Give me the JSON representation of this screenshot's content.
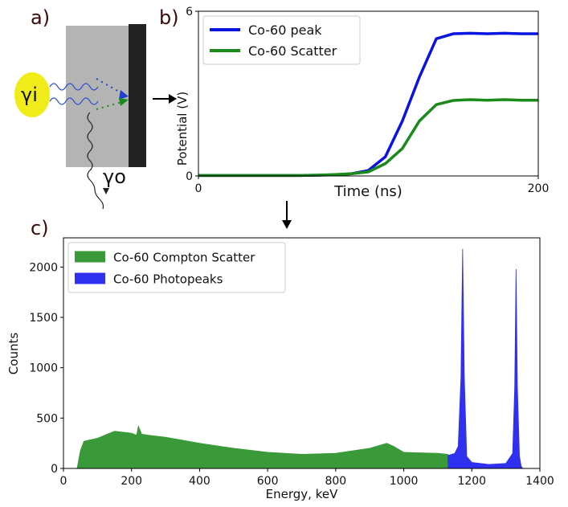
{
  "panel_labels": [
    "a)",
    "b)",
    "c)"
  ],
  "diagram": {
    "incident": "γi",
    "outgoing": "γo"
  },
  "chart_data": [
    {
      "type": "line",
      "xlabel": "Time (ns)",
      "ylabel": "Potential (V)",
      "xlim": [
        0,
        200
      ],
      "xticks": [
        0,
        200
      ],
      "ylim": [
        0,
        6
      ],
      "yticks": [
        0,
        6
      ],
      "legend": "upper-left",
      "x": [
        0,
        10,
        20,
        30,
        40,
        50,
        60,
        70,
        80,
        90,
        100,
        110,
        120,
        130,
        140,
        150,
        160,
        170,
        180,
        190,
        200
      ],
      "series": [
        {
          "name": "Co-60 peak",
          "color": "#0a14e0",
          "values": [
            0.02,
            0.02,
            0.02,
            0.02,
            0.02,
            0.02,
            0.02,
            0.03,
            0.04,
            0.08,
            0.2,
            0.7,
            2.0,
            3.6,
            5.0,
            5.18,
            5.2,
            5.18,
            5.2,
            5.18,
            5.18
          ]
        },
        {
          "name": "Co-60 Scatter",
          "color": "#1a8a1a",
          "values": [
            0.02,
            0.02,
            0.02,
            0.02,
            0.02,
            0.02,
            0.02,
            0.03,
            0.05,
            0.08,
            0.15,
            0.45,
            1.0,
            2.0,
            2.6,
            2.75,
            2.78,
            2.76,
            2.78,
            2.76,
            2.76
          ]
        }
      ]
    },
    {
      "type": "area",
      "xlabel": "Energy, keV",
      "ylabel": "Counts",
      "xlim": [
        0,
        1400
      ],
      "xticks": [
        0,
        200,
        400,
        600,
        800,
        1000,
        1200,
        1400
      ],
      "ylim": [
        0,
        2290
      ],
      "yticks": [
        0,
        500,
        1000,
        1500,
        2000
      ],
      "legend": "upper-left",
      "series": [
        {
          "name": "Co-60 Compton Scatter",
          "color": "#3a9a3a",
          "x": [
            40,
            50,
            60,
            100,
            150,
            200,
            215,
            220,
            230,
            250,
            300,
            400,
            500,
            600,
            700,
            800,
            900,
            950,
            970,
            1000,
            1100,
            1130
          ],
          "values": [
            0,
            180,
            270,
            300,
            370,
            350,
            330,
            420,
            340,
            330,
            310,
            250,
            200,
            160,
            140,
            150,
            200,
            250,
            220,
            160,
            150,
            140
          ]
        },
        {
          "name": "Co-60 Photopeaks",
          "color": "#3030f0",
          "x": [
            1130,
            1150,
            1160,
            1168,
            1173,
            1178,
            1185,
            1200,
            1250,
            1300,
            1320,
            1326,
            1330,
            1334,
            1340,
            1345,
            1350
          ],
          "values": [
            130,
            150,
            220,
            900,
            2180,
            900,
            120,
            60,
            40,
            50,
            150,
            800,
            1980,
            800,
            120,
            20,
            0
          ]
        }
      ]
    }
  ]
}
